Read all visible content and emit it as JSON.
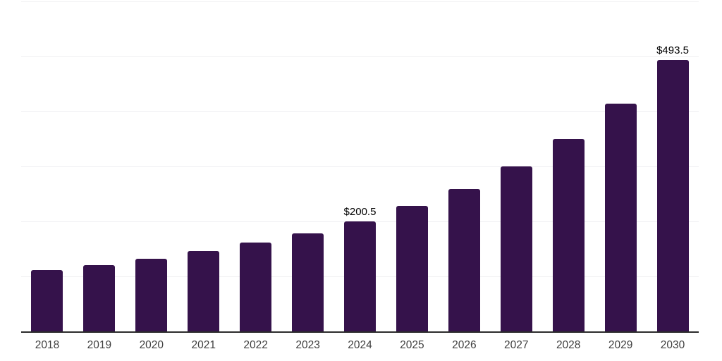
{
  "chart_data": {
    "type": "bar",
    "title": "",
    "xlabel": "",
    "ylabel": "",
    "categories": [
      "2018",
      "2019",
      "2020",
      "2021",
      "2022",
      "2023",
      "2024",
      "2025",
      "2026",
      "2027",
      "2028",
      "2029",
      "2030"
    ],
    "values": [
      111,
      121,
      132,
      146,
      161,
      178,
      200.5,
      228,
      259.5,
      300,
      350,
      414,
      493.5
    ],
    "bar_labels": [
      null,
      null,
      null,
      null,
      null,
      null,
      "$200.5",
      null,
      null,
      null,
      null,
      null,
      "$493.5"
    ],
    "ylim": [
      0,
      600
    ],
    "gridlines": [
      100,
      200,
      300,
      400,
      500,
      600
    ],
    "grid": true,
    "legend": false,
    "colors": {
      "bar": "#35124b",
      "gridline": "#f0f0f2",
      "axis_line": "#2b2b2b",
      "bar_label_text": "#000000",
      "tick_text": "#3f3f3f",
      "background": "#ffffff"
    }
  }
}
